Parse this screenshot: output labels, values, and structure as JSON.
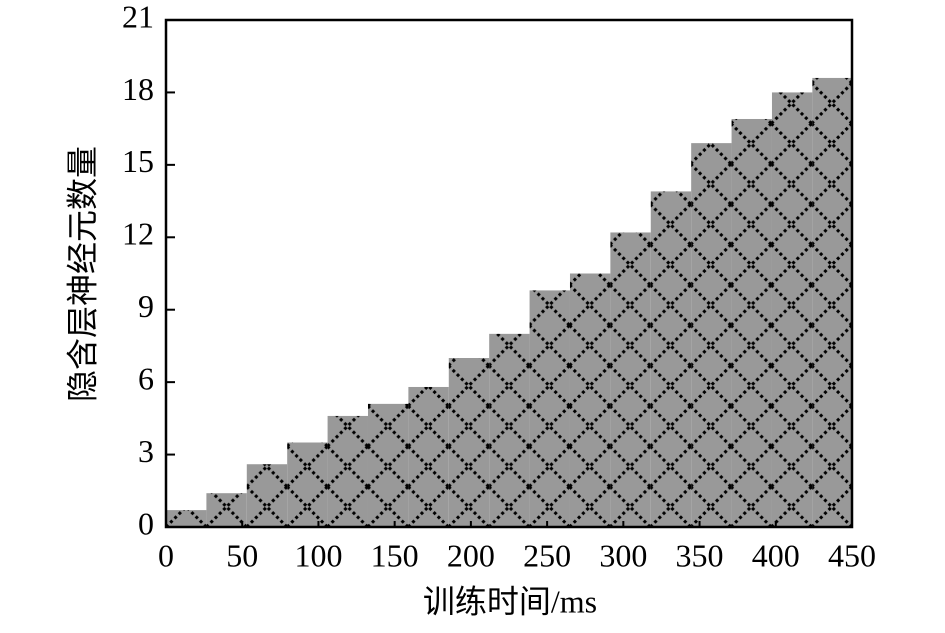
{
  "chart_data": {
    "type": "histogram",
    "xlabel": "训练时间/ms",
    "ylabel": "隐含层神经元数量",
    "bins": [
      0,
      26.5,
      53,
      79.5,
      106,
      132.5,
      159,
      185.5,
      212,
      238.5,
      265,
      291.5,
      318,
      344.5,
      371,
      397.5,
      424,
      450
    ],
    "values": [
      0.7,
      1.4,
      2.6,
      3.5,
      4.6,
      5.1,
      5.8,
      7.0,
      8.0,
      9.8,
      10.5,
      12.2,
      13.9,
      15.9,
      16.9,
      18.0,
      18.6
    ],
    "color": "#999999",
    "xlim": [
      0,
      450
    ],
    "xticks": [
      0,
      50,
      100,
      150,
      200,
      250,
      300,
      350,
      400,
      450
    ],
    "ylim": [
      0,
      21
    ],
    "yticks": [
      0,
      3,
      6,
      9,
      12,
      15,
      18,
      21
    ]
  }
}
